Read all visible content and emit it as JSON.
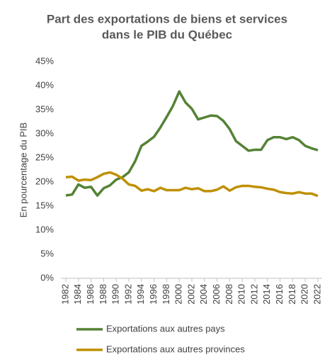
{
  "chart_data": {
    "type": "line",
    "title": [
      "Part des exportations de biens et services",
      "dans le PIB du Québec"
    ],
    "y_label": "En pourcentage du PIB",
    "x": [
      1982,
      1983,
      1984,
      1985,
      1986,
      1987,
      1988,
      1989,
      1990,
      1991,
      1992,
      1993,
      1994,
      1995,
      1996,
      1997,
      1998,
      1999,
      2000,
      2001,
      2002,
      2003,
      2004,
      2005,
      2006,
      2007,
      2008,
      2009,
      2010,
      2011,
      2012,
      2013,
      2014,
      2015,
      2016,
      2017,
      2018,
      2019,
      2020,
      2021,
      2022
    ],
    "series": [
      {
        "name": "Exportations aux autres pays",
        "color": "#548235",
        "values": [
          17.2,
          17.4,
          19.5,
          18.8,
          19.0,
          17.2,
          18.7,
          19.3,
          20.5,
          21.0,
          22.0,
          24.3,
          27.5,
          28.4,
          29.4,
          31.3,
          33.5,
          35.8,
          38.8,
          36.5,
          35.2,
          33.0,
          33.4,
          33.8,
          33.7,
          32.7,
          31.0,
          28.5,
          27.5,
          26.5,
          26.7,
          26.7,
          28.7,
          29.3,
          29.3,
          28.9,
          29.3,
          28.7,
          27.5,
          27.0,
          26.6
        ]
      },
      {
        "name": "Exportations aux autres provinces",
        "color": "#bf9000",
        "values": [
          21.0,
          21.1,
          20.3,
          20.5,
          20.4,
          21.0,
          21.7,
          22.0,
          21.5,
          20.7,
          19.5,
          19.2,
          18.2,
          18.5,
          18.1,
          18.8,
          18.3,
          18.3,
          18.3,
          18.8,
          18.5,
          18.7,
          18.1,
          18.1,
          18.4,
          19.1,
          18.2,
          18.9,
          19.2,
          19.2,
          19.0,
          18.9,
          18.6,
          18.4,
          17.9,
          17.7,
          17.6,
          17.9,
          17.6,
          17.6,
          17.1
        ]
      }
    ],
    "xlim": [
      1982,
      2022
    ],
    "xticks": [
      1982,
      1984,
      1986,
      1988,
      1990,
      1992,
      1994,
      1996,
      1998,
      2000,
      2002,
      2004,
      2006,
      2008,
      2010,
      2012,
      2014,
      2016,
      2018,
      2020,
      2022
    ],
    "ylim": [
      0,
      45
    ],
    "yticks": [
      {
        "value": 0,
        "label": "0%"
      },
      {
        "value": 5,
        "label": "5%"
      },
      {
        "value": 10,
        "label": "10%"
      },
      {
        "value": 15,
        "label": "15%"
      },
      {
        "value": 20,
        "label": "20%"
      },
      {
        "value": 25,
        "label": "25%"
      },
      {
        "value": 30,
        "label": "30%"
      },
      {
        "value": 35,
        "label": "35%"
      },
      {
        "value": 40,
        "label": "40%"
      },
      {
        "value": 45,
        "label": "45%"
      }
    ],
    "grid": false
  }
}
